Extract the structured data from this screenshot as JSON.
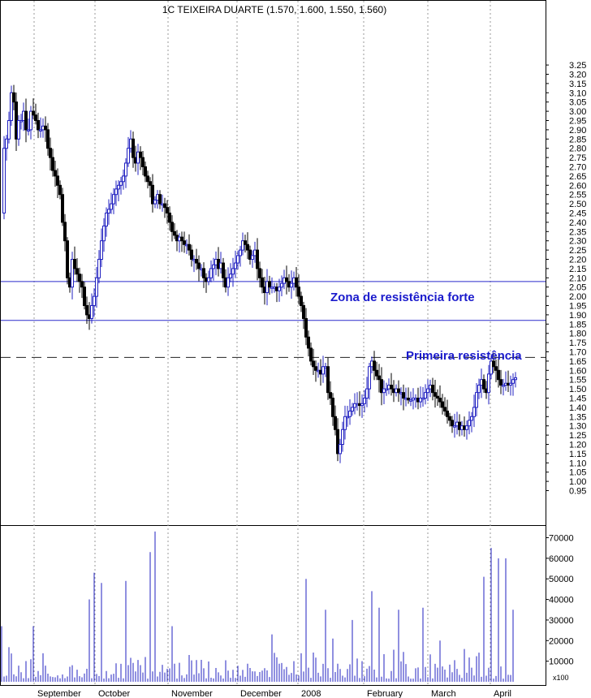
{
  "chart_data": [
    {
      "type": "candlestick",
      "title": "1C TEIXEIRA DUARTE (1.570, 1.600, 1.550, 1.560)",
      "ylim": [
        0.9,
        3.27
      ],
      "y_ticks": [
        0.95,
        1.0,
        1.05,
        1.1,
        1.15,
        1.2,
        1.25,
        1.3,
        1.35,
        1.4,
        1.45,
        1.5,
        1.55,
        1.6,
        1.65,
        1.7,
        1.75,
        1.8,
        1.85,
        1.9,
        1.95,
        2.0,
        2.05,
        2.1,
        2.15,
        2.2,
        2.25,
        2.3,
        2.35,
        2.4,
        2.45,
        2.5,
        2.55,
        2.6,
        2.65,
        2.7,
        2.75,
        2.8,
        2.85,
        2.9,
        2.95,
        3.0,
        3.05,
        3.1,
        3.15,
        3.2,
        3.25
      ],
      "months": [
        "September",
        "October",
        "November",
        "December",
        "2008",
        "February",
        "March",
        "April"
      ],
      "close_path": [
        [
          0,
          2.45
        ],
        [
          3,
          2.8
        ],
        [
          6,
          2.85
        ],
        [
          9,
          2.95
        ],
        [
          12,
          3.1
        ],
        [
          15,
          3.05
        ],
        [
          18,
          2.85
        ],
        [
          21,
          2.95
        ],
        [
          24,
          2.95
        ],
        [
          27,
          3.0
        ],
        [
          30,
          2.9
        ],
        [
          33,
          2.9
        ],
        [
          36,
          3.0
        ],
        [
          39,
          2.98
        ],
        [
          42,
          2.95
        ],
        [
          45,
          2.9
        ],
        [
          48,
          2.9
        ],
        [
          51,
          2.92
        ],
        [
          54,
          2.9
        ],
        [
          57,
          2.8
        ],
        [
          60,
          2.75
        ],
        [
          63,
          2.68
        ],
        [
          66,
          2.65
        ],
        [
          69,
          2.6
        ],
        [
          72,
          2.55
        ],
        [
          75,
          2.4
        ],
        [
          78,
          2.3
        ],
        [
          81,
          2.1
        ],
        [
          84,
          2.05
        ],
        [
          87,
          2.2
        ],
        [
          90,
          2.15
        ],
        [
          93,
          2.12
        ],
        [
          96,
          2.08
        ],
        [
          99,
          2.05
        ],
        [
          102,
          1.95
        ],
        [
          105,
          1.9
        ],
        [
          108,
          1.88
        ],
        [
          111,
          1.95
        ],
        [
          114,
          2.0
        ],
        [
          117,
          2.1
        ],
        [
          120,
          2.2
        ],
        [
          123,
          2.3
        ],
        [
          126,
          2.38
        ],
        [
          129,
          2.45
        ],
        [
          132,
          2.47
        ],
        [
          135,
          2.5
        ],
        [
          138,
          2.55
        ],
        [
          141,
          2.58
        ],
        [
          144,
          2.6
        ],
        [
          147,
          2.62
        ],
        [
          150,
          2.65
        ],
        [
          153,
          2.72
        ],
        [
          156,
          2.8
        ],
        [
          159,
          2.85
        ],
        [
          162,
          2.75
        ],
        [
          165,
          2.72
        ],
        [
          168,
          2.78
        ],
        [
          171,
          2.75
        ],
        [
          174,
          2.7
        ],
        [
          177,
          2.65
        ],
        [
          180,
          2.62
        ],
        [
          183,
          2.6
        ],
        [
          186,
          2.5
        ],
        [
          189,
          2.52
        ],
        [
          192,
          2.55
        ],
        [
          195,
          2.5
        ],
        [
          198,
          2.5
        ],
        [
          201,
          2.48
        ],
        [
          204,
          2.45
        ],
        [
          207,
          2.4
        ],
        [
          210,
          2.35
        ],
        [
          213,
          2.33
        ],
        [
          216,
          2.3
        ],
        [
          219,
          2.32
        ],
        [
          222,
          2.3
        ],
        [
          225,
          2.28
        ],
        [
          228,
          2.28
        ],
        [
          231,
          2.25
        ],
        [
          234,
          2.2
        ],
        [
          237,
          2.2
        ],
        [
          240,
          2.18
        ],
        [
          243,
          2.15
        ],
        [
          246,
          2.15
        ],
        [
          249,
          2.1
        ],
        [
          252,
          2.08
        ],
        [
          255,
          2.1
        ],
        [
          258,
          2.15
        ],
        [
          261,
          2.17
        ],
        [
          264,
          2.2
        ],
        [
          267,
          2.15
        ],
        [
          270,
          2.18
        ],
        [
          273,
          2.1
        ],
        [
          276,
          2.05
        ],
        [
          279,
          2.1
        ],
        [
          282,
          2.12
        ],
        [
          285,
          2.15
        ],
        [
          288,
          2.18
        ],
        [
          291,
          2.22
        ],
        [
          294,
          2.25
        ],
        [
          297,
          2.3
        ],
        [
          300,
          2.28
        ],
        [
          303,
          2.25
        ],
        [
          306,
          2.2
        ],
        [
          309,
          2.22
        ],
        [
          312,
          2.25
        ],
        [
          315,
          2.15
        ],
        [
          318,
          2.1
        ],
        [
          321,
          2.05
        ],
        [
          324,
          2.02
        ],
        [
          327,
          2.08
        ],
        [
          330,
          2.05
        ],
        [
          333,
          2.05
        ],
        [
          336,
          2.05
        ],
        [
          339,
          2.03
        ],
        [
          342,
          2.05
        ],
        [
          345,
          2.07
        ],
        [
          348,
          2.1
        ],
        [
          351,
          2.08
        ],
        [
          354,
          2.05
        ],
        [
          357,
          2.07
        ],
        [
          360,
          2.1
        ],
        [
          363,
          2.05
        ],
        [
          366,
          2.0
        ],
        [
          369,
          1.95
        ],
        [
          372,
          1.88
        ],
        [
          375,
          1.78
        ],
        [
          378,
          1.72
        ],
        [
          381,
          1.65
        ],
        [
          384,
          1.62
        ],
        [
          387,
          1.6
        ],
        [
          390,
          1.6
        ],
        [
          393,
          1.58
        ],
        [
          396,
          1.62
        ],
        [
          399,
          1.62
        ],
        [
          402,
          1.48
        ],
        [
          405,
          1.45
        ],
        [
          408,
          1.35
        ],
        [
          411,
          1.28
        ],
        [
          414,
          1.15
        ],
        [
          417,
          1.2
        ],
        [
          420,
          1.28
        ],
        [
          423,
          1.35
        ],
        [
          426,
          1.35
        ],
        [
          429,
          1.38
        ],
        [
          432,
          1.4
        ],
        [
          435,
          1.42
        ],
        [
          438,
          1.42
        ],
        [
          441,
          1.41
        ],
        [
          444,
          1.42
        ],
        [
          447,
          1.45
        ],
        [
          450,
          1.5
        ],
        [
          453,
          1.62
        ],
        [
          456,
          1.65
        ],
        [
          459,
          1.6
        ],
        [
          462,
          1.57
        ],
        [
          465,
          1.55
        ],
        [
          468,
          1.48
        ],
        [
          471,
          1.5
        ],
        [
          474,
          1.5
        ],
        [
          477,
          1.52
        ],
        [
          480,
          1.5
        ],
        [
          483,
          1.48
        ],
        [
          486,
          1.5
        ],
        [
          489,
          1.48
        ],
        [
          492,
          1.48
        ],
        [
          495,
          1.45
        ],
        [
          498,
          1.45
        ],
        [
          501,
          1.44
        ],
        [
          504,
          1.44
        ],
        [
          507,
          1.45
        ],
        [
          510,
          1.45
        ],
        [
          513,
          1.43
        ],
        [
          516,
          1.45
        ],
        [
          519,
          1.45
        ],
        [
          522,
          1.48
        ],
        [
          525,
          1.5
        ],
        [
          528,
          1.52
        ],
        [
          531,
          1.48
        ],
        [
          534,
          1.46
        ],
        [
          537,
          1.45
        ],
        [
          540,
          1.43
        ],
        [
          543,
          1.4
        ],
        [
          546,
          1.38
        ],
        [
          549,
          1.35
        ],
        [
          552,
          1.33
        ],
        [
          555,
          1.3
        ],
        [
          558,
          1.3
        ],
        [
          561,
          1.32
        ],
        [
          564,
          1.28
        ],
        [
          567,
          1.3
        ],
        [
          570,
          1.28
        ],
        [
          573,
          1.3
        ],
        [
          576,
          1.33
        ],
        [
          579,
          1.35
        ],
        [
          582,
          1.4
        ],
        [
          585,
          1.48
        ],
        [
          588,
          1.52
        ],
        [
          591,
          1.55
        ],
        [
          594,
          1.5
        ],
        [
          597,
          1.48
        ],
        [
          600,
          1.58
        ],
        [
          603,
          1.65
        ],
        [
          606,
          1.62
        ],
        [
          609,
          1.6
        ],
        [
          612,
          1.55
        ],
        [
          615,
          1.52
        ],
        [
          618,
          1.52
        ],
        [
          621,
          1.53
        ],
        [
          624,
          1.52
        ],
        [
          627,
          1.53
        ],
        [
          630,
          1.55
        ],
        [
          633,
          1.56
        ]
      ],
      "hlines": [
        {
          "price": 2.08,
          "style": "solid"
        },
        {
          "price": 1.87,
          "style": "solid"
        },
        {
          "price": 1.67,
          "style": "dashed"
        }
      ],
      "annotations": [
        "Zona de resistência forte",
        "Primeira resistência"
      ]
    },
    {
      "type": "bar",
      "ylim": [
        0,
        75000
      ],
      "y_ticks": [
        10000,
        20000,
        30000,
        40000,
        50000,
        60000,
        70000
      ],
      "y_unit": "x100",
      "peaks": [
        [
          0,
          27000
        ],
        [
          40,
          27000
        ],
        [
          110,
          40000
        ],
        [
          116,
          53000
        ],
        [
          124,
          48000
        ],
        [
          155,
          49000
        ],
        [
          191,
          73000
        ],
        [
          185,
          63000
        ],
        [
          210,
          27000
        ],
        [
          335,
          23000
        ],
        [
          376,
          50000
        ],
        [
          400,
          35000
        ],
        [
          408,
          21000
        ],
        [
          432,
          30000
        ],
        [
          457,
          44000
        ],
        [
          466,
          36000
        ],
        [
          490,
          35000
        ],
        [
          520,
          36000
        ],
        [
          540,
          20000
        ],
        [
          595,
          51000
        ],
        [
          605,
          65000
        ],
        [
          612,
          60000
        ],
        [
          622,
          60000
        ],
        [
          630,
          35000
        ]
      ]
    }
  ]
}
